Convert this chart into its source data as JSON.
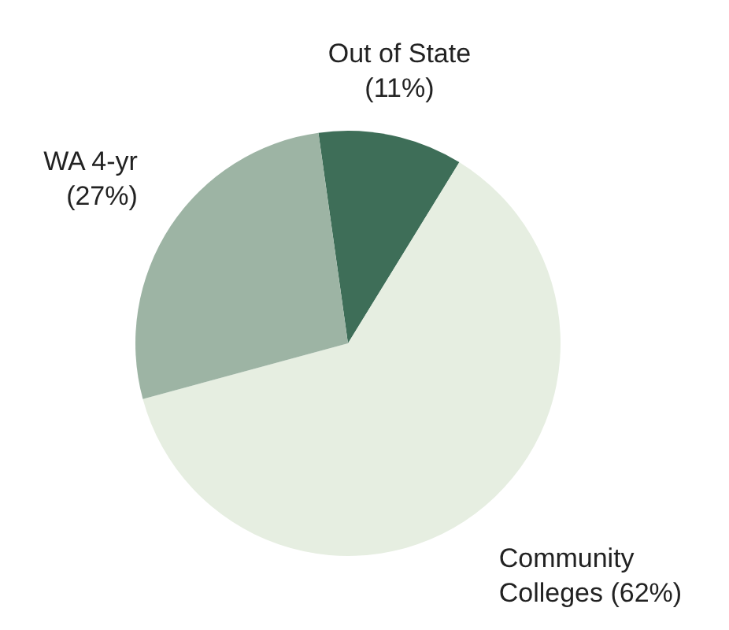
{
  "chart_data": {
    "type": "pie",
    "categories": [
      "Out of State",
      "Community Colleges",
      "WA 4-yr"
    ],
    "values": [
      11,
      62,
      27
    ],
    "value_labels": [
      "(11%)",
      "(62%)",
      "(27%)"
    ],
    "colors": [
      "#3e6e58",
      "#e6eee1",
      "#9db4a4"
    ],
    "legend": false
  }
}
